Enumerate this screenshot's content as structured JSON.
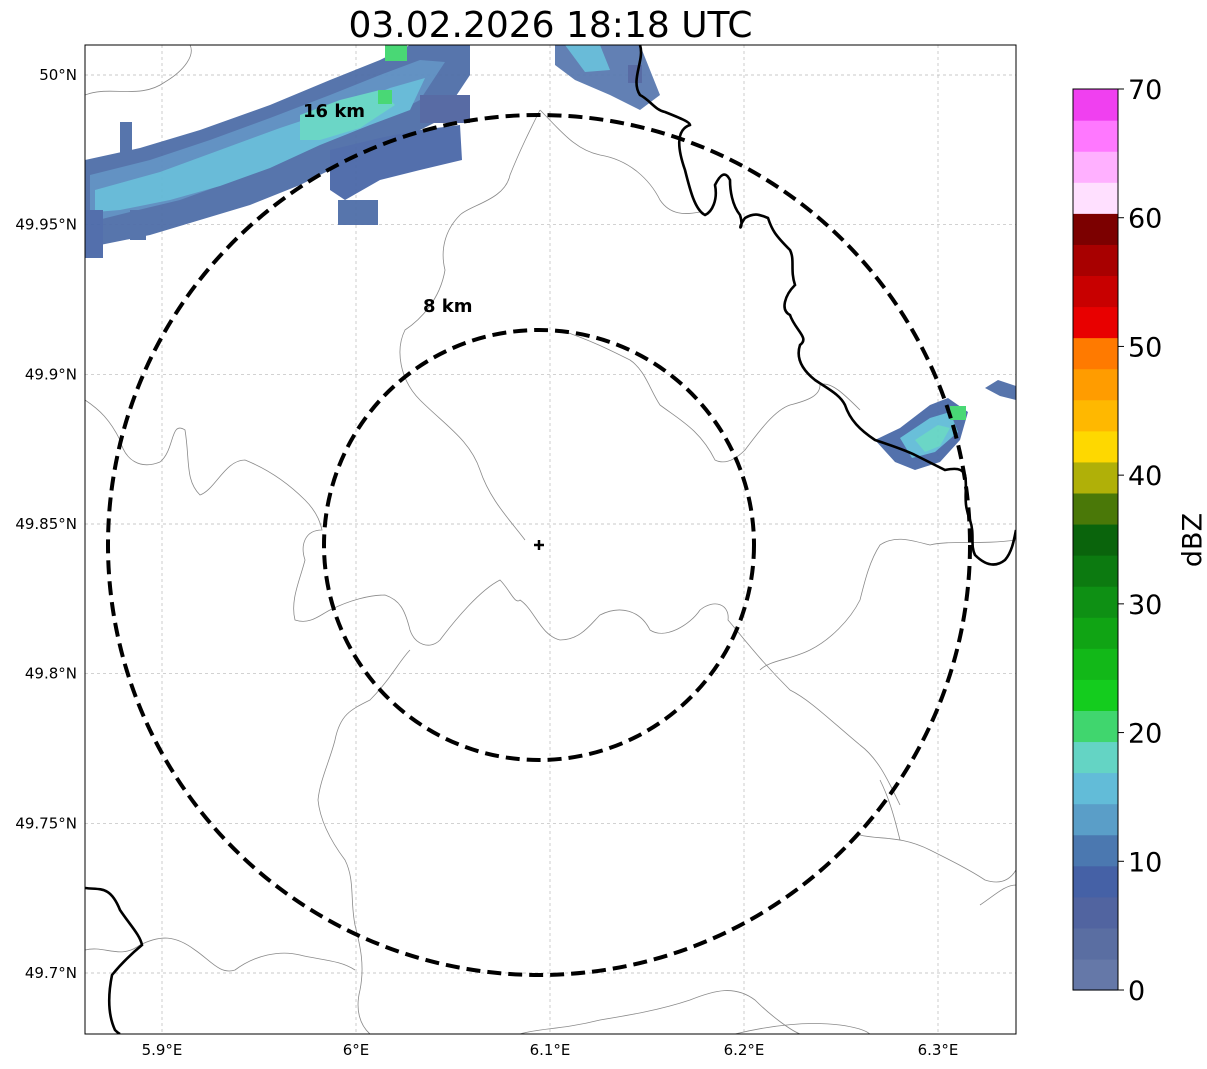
{
  "title": "03.02.2026 18:18 UTC",
  "lon_ticks": [
    {
      "value": 5.9,
      "label": "5.9°E"
    },
    {
      "value": 6.0,
      "label": "6°E"
    },
    {
      "value": 6.1,
      "label": "6.1°E"
    },
    {
      "value": 6.2,
      "label": "6.2°E"
    },
    {
      "value": 6.3,
      "label": "6.3°E"
    }
  ],
  "lat_ticks": [
    {
      "value": 50.0,
      "label": "50°N"
    },
    {
      "value": 49.95,
      "label": "49.95°N"
    },
    {
      "value": 49.9,
      "label": "49.9°N"
    },
    {
      "value": 49.85,
      "label": "49.85°N"
    },
    {
      "value": 49.8,
      "label": "49.8°N"
    },
    {
      "value": 49.75,
      "label": "49.75°N"
    },
    {
      "value": 49.7,
      "label": "49.7°N"
    }
  ],
  "extent": {
    "lon": [
      5.86,
      6.34
    ],
    "lat": [
      49.68,
      50.01
    ]
  },
  "radar_center": {
    "lon": 6.095,
    "lat": 49.843
  },
  "range_rings": [
    {
      "radius_km": 8,
      "label": "8 km"
    },
    {
      "radius_km": 16,
      "label": "16 km"
    }
  ],
  "colorbar": {
    "label": "dBZ",
    "min": 0,
    "max": 70,
    "ticks": [
      {
        "value": 0,
        "label": "0"
      },
      {
        "value": 10,
        "label": "10"
      },
      {
        "value": 20,
        "label": "20"
      },
      {
        "value": 30,
        "label": "30"
      },
      {
        "value": 40,
        "label": "40"
      },
      {
        "value": 50,
        "label": "50"
      },
      {
        "value": 60,
        "label": "60"
      },
      {
        "value": 70,
        "label": "70"
      }
    ],
    "colors": [
      "#6578a8",
      "#5a6ea2",
      "#5164a0",
      "#4561a6",
      "#4b78b0",
      "#5a9ec8",
      "#62bcd8",
      "#64d4c4",
      "#40d66e",
      "#14cc1e",
      "#12b818",
      "#10a414",
      "#0e9014",
      "#0c7a10",
      "#0a640c",
      "#4a7808",
      "#b0b008",
      "#fed800",
      "#ffb800",
      "#ff9c00",
      "#ff7a00",
      "#e80000",
      "#c80000",
      "#a80000",
      "#7c0000",
      "#ffe0ff",
      "#ffb0ff",
      "#ff78ff",
      "#f040f0"
    ]
  },
  "echoes": [
    {
      "name": "northwest-band",
      "dbz_range": [
        0,
        20
      ]
    },
    {
      "name": "north-cell",
      "dbz_range": [
        0,
        18
      ]
    },
    {
      "name": "east-cell",
      "dbz_range": [
        0,
        20
      ]
    }
  ]
}
